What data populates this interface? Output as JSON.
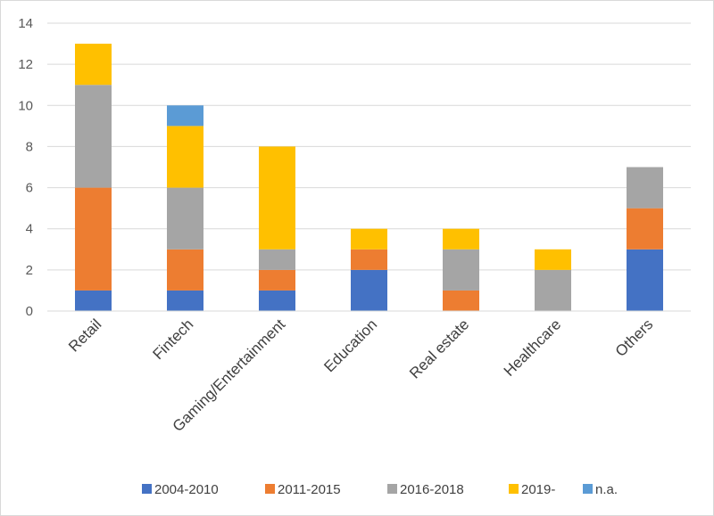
{
  "chart_data": {
    "type": "bar",
    "stacked": true,
    "title": "",
    "xlabel": "",
    "ylabel": "",
    "ylim": [
      0,
      14
    ],
    "yticks": [
      0,
      2,
      4,
      6,
      8,
      10,
      12,
      14
    ],
    "grid": true,
    "legend_position": "bottom",
    "categories": [
      "Retail",
      "Fintech",
      "Gaming/Entertainment",
      "Education",
      "Real estate",
      "Healthcare",
      "Others"
    ],
    "series": [
      {
        "name": "2004-2010",
        "color": "#4472C4",
        "values": [
          1,
          1,
          1,
          2,
          0,
          0,
          3
        ]
      },
      {
        "name": "2011-2015",
        "color": "#ED7D31",
        "values": [
          5,
          2,
          1,
          1,
          1,
          0,
          2
        ]
      },
      {
        "name": "2016-2018",
        "color": "#A5A5A5",
        "values": [
          5,
          3,
          1,
          0,
          2,
          2,
          2
        ]
      },
      {
        "name": "2019-",
        "color": "#FFC000",
        "values": [
          2,
          3,
          5,
          1,
          1,
          1,
          0
        ]
      },
      {
        "name": "n.a.",
        "color": "#5B9BD5",
        "values": [
          0,
          1,
          0,
          0,
          0,
          0,
          0
        ]
      }
    ]
  }
}
